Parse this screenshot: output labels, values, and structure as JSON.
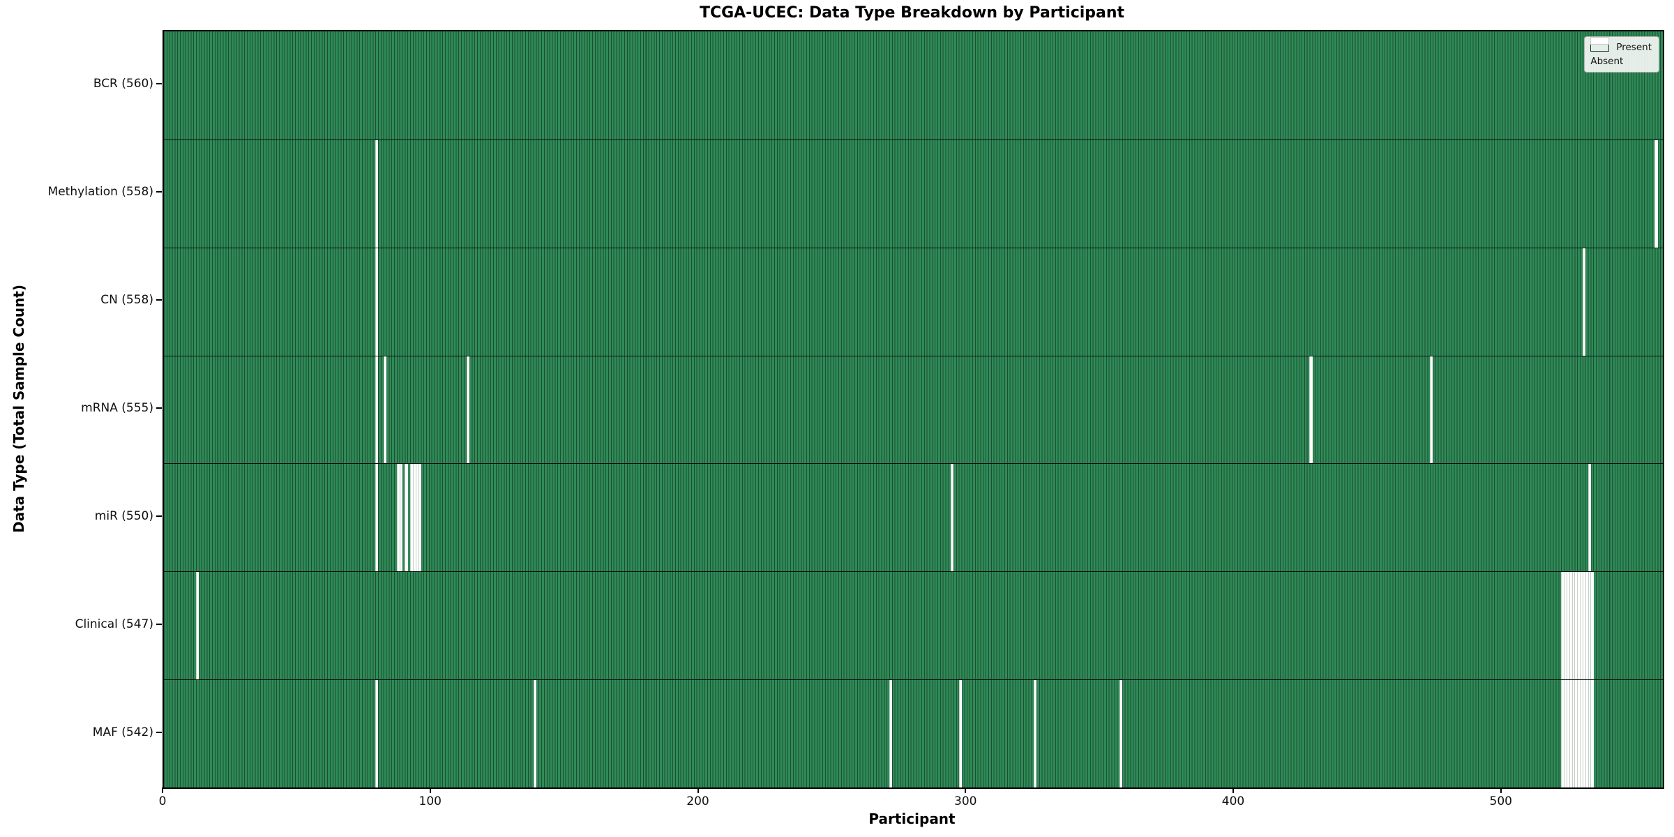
{
  "chart_data": {
    "type": "heatmap",
    "title": "TCGA-UCEC: Data Type Breakdown by Participant",
    "xlabel": "Participant",
    "ylabel": "Data Type (Total Sample Count)",
    "n_participants": 560,
    "x_ticks": [
      0,
      100,
      200,
      300,
      400,
      500
    ],
    "grid": false,
    "legend_position": "upper right",
    "colors": {
      "present_fill": "#2e8b57",
      "cell_edge": "#1e4d33",
      "absent_fill": "#ffffff",
      "row_divider": "#0d0d0d"
    },
    "legend": [
      {
        "label": "Present",
        "color": "#2e8b57"
      },
      {
        "label": "Absent",
        "color": "#ffffff"
      }
    ],
    "rows": [
      {
        "name": "BCR",
        "label": "BCR (560)",
        "total": 560,
        "absent": []
      },
      {
        "name": "Methylation",
        "label": "Methylation (558)",
        "total": 558,
        "absent": [
          79,
          557
        ]
      },
      {
        "name": "CN",
        "label": "CN (558)",
        "total": 558,
        "absent": [
          79,
          530
        ]
      },
      {
        "name": "mRNA",
        "label": "mRNA (555)",
        "total": 555,
        "absent": [
          79,
          82,
          113,
          428,
          473
        ]
      },
      {
        "name": "miR",
        "label": "miR (550)",
        "total": 550,
        "absent": [
          79,
          87,
          88,
          90,
          92,
          93,
          94,
          95,
          294,
          532
        ]
      },
      {
        "name": "Clinical",
        "label": "Clinical (547)",
        "total": 547,
        "absent": [
          12,
          522,
          523,
          524,
          525,
          526,
          527,
          528,
          529,
          530,
          531,
          532,
          533
        ]
      },
      {
        "name": "MAF",
        "label": "MAF (542)",
        "total": 542,
        "absent": [
          79,
          138,
          271,
          297,
          325,
          357,
          522,
          523,
          524,
          525,
          526,
          527,
          528,
          529,
          530,
          531,
          532,
          533
        ]
      }
    ]
  }
}
